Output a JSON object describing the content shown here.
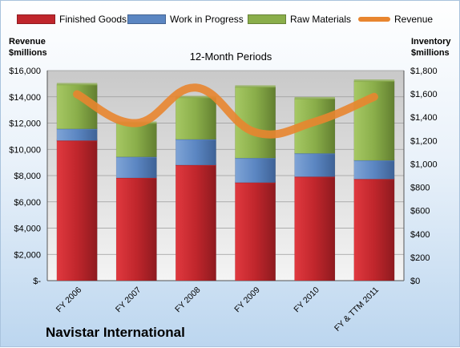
{
  "chart_data": {
    "type": "bar",
    "subtitle": "12-Month Periods",
    "categories": [
      "FY 2006",
      "FY 2007",
      "FY 2008",
      "FY 2009",
      "FY 2010",
      "FY & TTM 2011"
    ],
    "left_axis": {
      "title_line1": "Revenue",
      "title_line2": "$millions",
      "ylim": [
        0,
        16000
      ],
      "ticks": [
        "$-",
        "$2,000",
        "$4,000",
        "$6,000",
        "$8,000",
        "$10,000",
        "$12,000",
        "$14,000",
        "$16,000"
      ]
    },
    "right_axis": {
      "title_line1": "Inventory",
      "title_line2": "$millions",
      "ylim": [
        0,
        1800
      ],
      "ticks": [
        "$0",
        "$200",
        "$400",
        "$600",
        "$800",
        "$1,000",
        "$1,200",
        "$1,400",
        "$1,600",
        "$1,800"
      ]
    },
    "series": [
      {
        "name": "Finished Goods",
        "kind": "stacked-bar",
        "axis": "right",
        "color": "#c0262c",
        "values": [
          1200,
          880,
          990,
          840,
          890,
          870
        ]
      },
      {
        "name": "Work in Progress",
        "kind": "stacked-bar",
        "axis": "right",
        "color": "#5b86c2",
        "values": [
          100,
          180,
          220,
          210,
          200,
          160
        ]
      },
      {
        "name": "Raw Materials",
        "kind": "stacked-bar",
        "axis": "right",
        "color": "#8aae4a",
        "values": [
          380,
          290,
          360,
          610,
          470,
          680
        ]
      },
      {
        "name": "Revenue",
        "kind": "line",
        "axis": "left",
        "color": "#e8852f",
        "values": [
          14200,
          12000,
          14700,
          11300,
          12100,
          14000
        ]
      }
    ],
    "legend_position": "top",
    "grid": true
  },
  "footer": {
    "company": "Navistar International"
  }
}
